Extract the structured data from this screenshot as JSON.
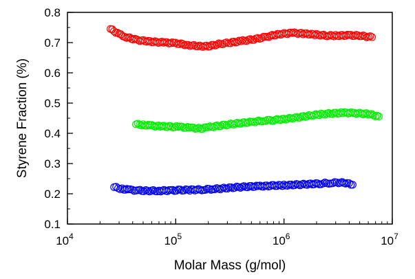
{
  "chart_data": {
    "type": "scatter",
    "xlabel": "Molar Mass (g/mol)",
    "ylabel": "Styrene Fraction (%)",
    "xscale": "log",
    "xlim": [
      10000,
      10000000
    ],
    "ylim": [
      0.1,
      0.8
    ],
    "x_ticks": [
      10000,
      100000,
      1000000,
      10000000
    ],
    "x_tick_labels": [
      {
        "base": "10",
        "exp": "4"
      },
      {
        "base": "10",
        "exp": "5"
      },
      {
        "base": "10",
        "exp": "6"
      },
      {
        "base": "10",
        "exp": "7"
      }
    ],
    "y_ticks": [
      0.1,
      0.2,
      0.3,
      0.4,
      0.5,
      0.6,
      0.7,
      0.8
    ],
    "y_tick_labels": [
      "0.1",
      "0.2",
      "0.3",
      "0.4",
      "0.5",
      "0.6",
      "0.7",
      "0.8"
    ],
    "grid": false,
    "legend": "none",
    "marker": "open-circle",
    "series": [
      {
        "color": "#ff0000",
        "points": [
          [
            25000,
            0.745
          ],
          [
            30000,
            0.728
          ],
          [
            35000,
            0.718
          ],
          [
            45000,
            0.708
          ],
          [
            60000,
            0.703
          ],
          [
            80000,
            0.7
          ],
          [
            100000,
            0.698
          ],
          [
            130000,
            0.692
          ],
          [
            160000,
            0.688
          ],
          [
            200000,
            0.688
          ],
          [
            250000,
            0.695
          ],
          [
            320000,
            0.7
          ],
          [
            400000,
            0.705
          ],
          [
            550000,
            0.712
          ],
          [
            700000,
            0.72
          ],
          [
            900000,
            0.728
          ],
          [
            1200000,
            0.732
          ],
          [
            1500000,
            0.73
          ],
          [
            2000000,
            0.726
          ],
          [
            2500000,
            0.723
          ],
          [
            3000000,
            0.723
          ],
          [
            4000000,
            0.724
          ],
          [
            5000000,
            0.723
          ],
          [
            6500000,
            0.718
          ]
        ]
      },
      {
        "color": "#00ee00",
        "points": [
          [
            43000,
            0.43
          ],
          [
            50000,
            0.428
          ],
          [
            60000,
            0.425
          ],
          [
            75000,
            0.423
          ],
          [
            90000,
            0.422
          ],
          [
            110000,
            0.421
          ],
          [
            140000,
            0.418
          ],
          [
            170000,
            0.416
          ],
          [
            200000,
            0.42
          ],
          [
            250000,
            0.425
          ],
          [
            320000,
            0.43
          ],
          [
            400000,
            0.434
          ],
          [
            520000,
            0.438
          ],
          [
            650000,
            0.442
          ],
          [
            800000,
            0.444
          ],
          [
            1000000,
            0.447
          ],
          [
            1300000,
            0.452
          ],
          [
            1700000,
            0.458
          ],
          [
            2200000,
            0.463
          ],
          [
            2800000,
            0.466
          ],
          [
            3500000,
            0.468
          ],
          [
            4500000,
            0.467
          ],
          [
            6000000,
            0.464
          ],
          [
            7500000,
            0.456
          ]
        ]
      },
      {
        "color": "#0000ee",
        "points": [
          [
            27000,
            0.222
          ],
          [
            32000,
            0.216
          ],
          [
            38000,
            0.213
          ],
          [
            45000,
            0.211
          ],
          [
            55000,
            0.21
          ],
          [
            70000,
            0.21
          ],
          [
            90000,
            0.211
          ],
          [
            110000,
            0.212
          ],
          [
            140000,
            0.213
          ],
          [
            180000,
            0.214
          ],
          [
            230000,
            0.216
          ],
          [
            300000,
            0.219
          ],
          [
            380000,
            0.222
          ],
          [
            480000,
            0.224
          ],
          [
            600000,
            0.225
          ],
          [
            800000,
            0.227
          ],
          [
            1000000,
            0.228
          ],
          [
            1300000,
            0.23
          ],
          [
            1700000,
            0.232
          ],
          [
            2200000,
            0.234
          ],
          [
            2700000,
            0.236
          ],
          [
            3200000,
            0.237
          ],
          [
            3700000,
            0.236
          ],
          [
            4300000,
            0.23
          ]
        ]
      }
    ]
  }
}
